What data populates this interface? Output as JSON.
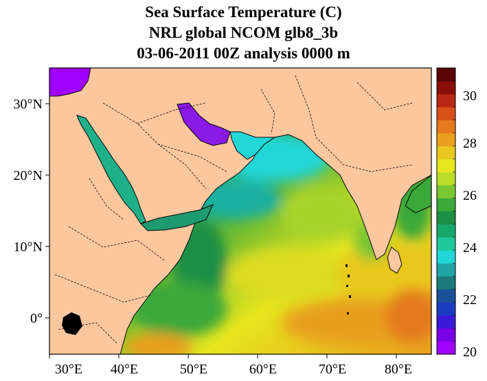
{
  "title": {
    "line1": "Sea Surface Temperature (C)",
    "line2": "NRL global NCOM glb8_3b",
    "line3": "03-06-2011 00Z analysis   0000 m"
  },
  "map": {
    "lon_range": [
      30,
      85
    ],
    "lat_range": [
      -5,
      35
    ],
    "x_ticks": [
      "30°E",
      "40°E",
      "50°E",
      "60°E",
      "70°E",
      "80°E"
    ],
    "y_ticks": [
      "0°",
      "10°N",
      "20°N",
      "30°N"
    ],
    "land_color": "#fbc79f",
    "border_style": "dashed"
  },
  "colorbar": {
    "min": 20,
    "max": 31,
    "tick_labels": [
      "20",
      "22",
      "24",
      "26",
      "28",
      "30"
    ],
    "colors": [
      "#a000ff",
      "#7a00e6",
      "#3a1ad6",
      "#1a3cc0",
      "#1a4f9a",
      "#1d7a7a",
      "#1fa3a3",
      "#22d6d6",
      "#1fc89a",
      "#16a86a",
      "#1e8e44",
      "#3aa83a",
      "#7ac634",
      "#b8dc28",
      "#e6e61e",
      "#e8c81e",
      "#e8a01e",
      "#e47a1e",
      "#d8501a",
      "#b82814",
      "#8a0f0a",
      "#5a0505"
    ]
  }
}
